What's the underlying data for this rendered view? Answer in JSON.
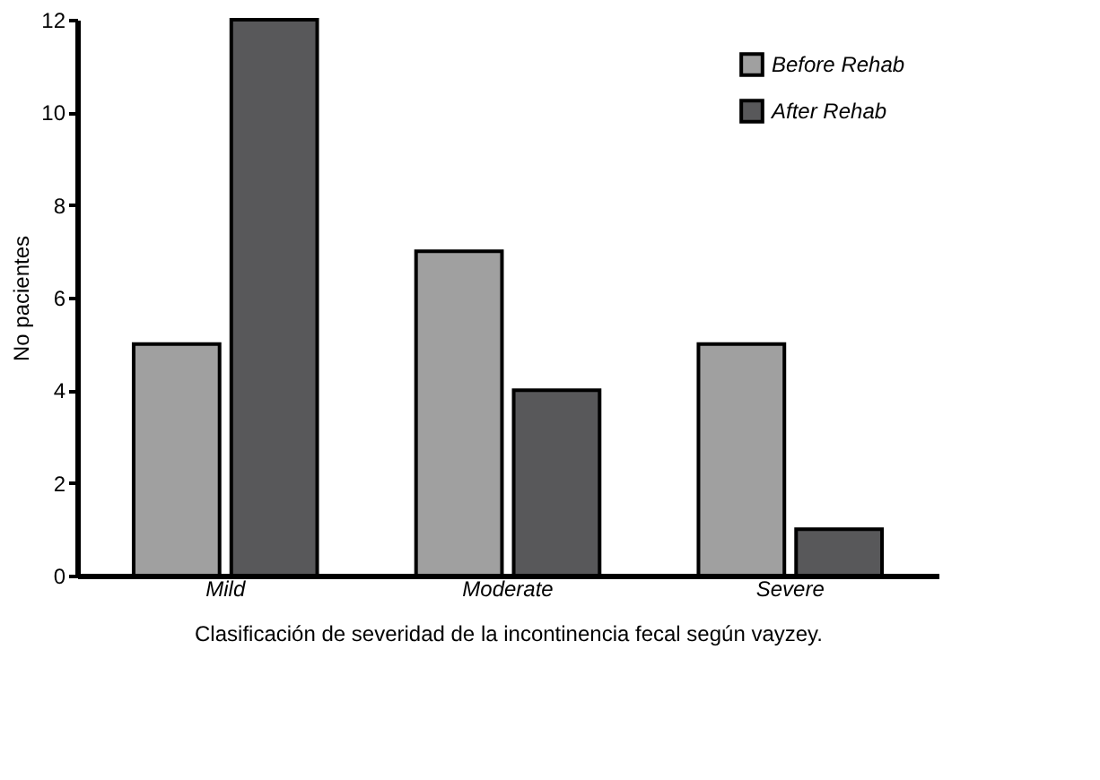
{
  "chart_data": {
    "type": "bar",
    "categories": [
      "Mild",
      "Moderate",
      "Severe"
    ],
    "series": [
      {
        "name": "Before Rehab",
        "color": "#a0a0a0",
        "values": [
          5,
          7,
          5
        ]
      },
      {
        "name": "After Rehab",
        "color": "#58585a",
        "values": [
          12,
          4,
          1
        ]
      }
    ],
    "xlabel": "Clasificación de severidad de la incontinencia fecal según vayzey.",
    "ylabel": "No pacientes",
    "ylim": [
      0,
      12
    ],
    "yticks": [
      0,
      2,
      4,
      6,
      8,
      10,
      12
    ],
    "grid": false,
    "legend": "top right"
  }
}
